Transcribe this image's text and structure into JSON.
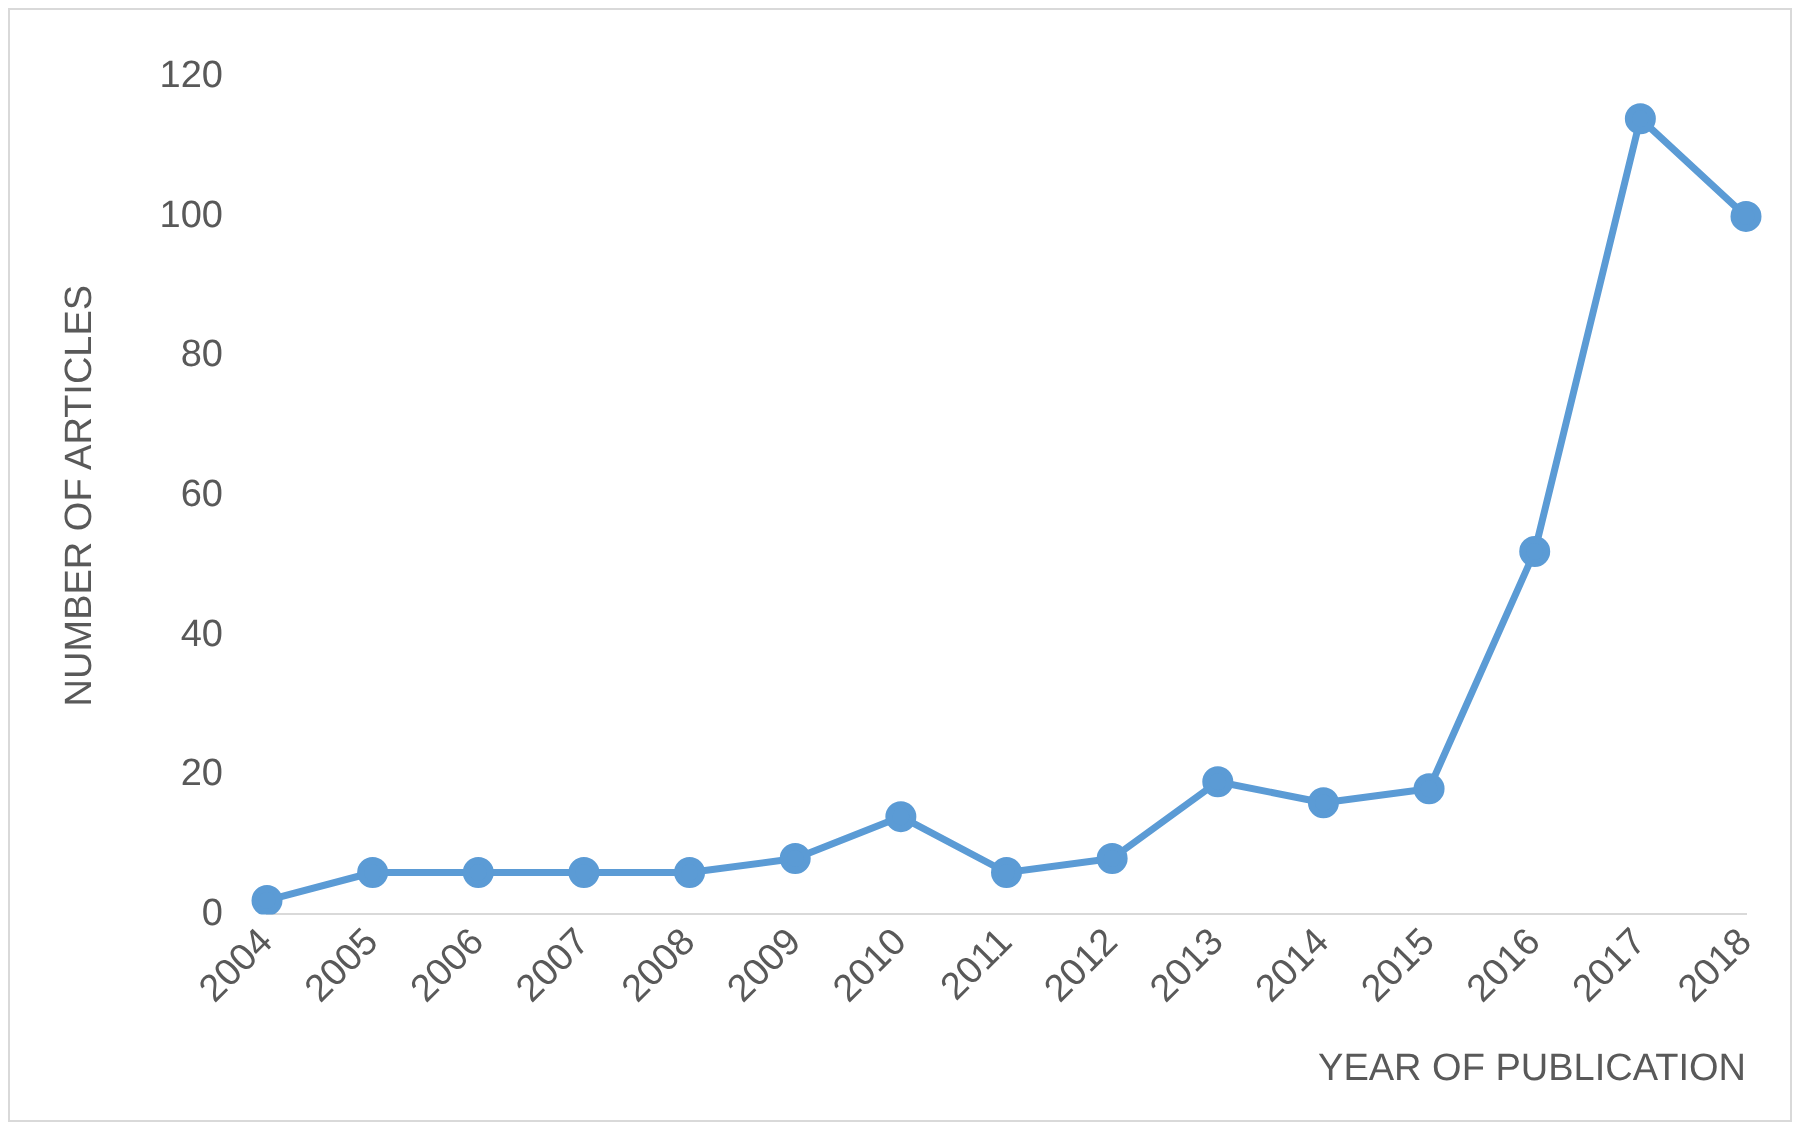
{
  "chart_data": {
    "type": "line",
    "xlabel": "YEAR OF PUBLICATION",
    "ylabel": "NUMBER OF ARTICLES",
    "categories": [
      "2004",
      "2005",
      "2006",
      "2007",
      "2008",
      "2009",
      "2010",
      "2011",
      "2012",
      "2013",
      "2014",
      "2015",
      "2016",
      "2017",
      "2018"
    ],
    "series": [
      {
        "color": "#5b9bd5",
        "values": [
          2,
          6,
          6,
          6,
          6,
          8,
          14,
          6,
          8,
          19,
          16,
          18,
          52,
          114,
          100
        ]
      }
    ],
    "ylim": [
      0,
      120
    ],
    "yticks": [
      0,
      20,
      40,
      60,
      80,
      100,
      120
    ],
    "grid": false,
    "legend": false,
    "marker": "circle",
    "line_style": "solid"
  }
}
